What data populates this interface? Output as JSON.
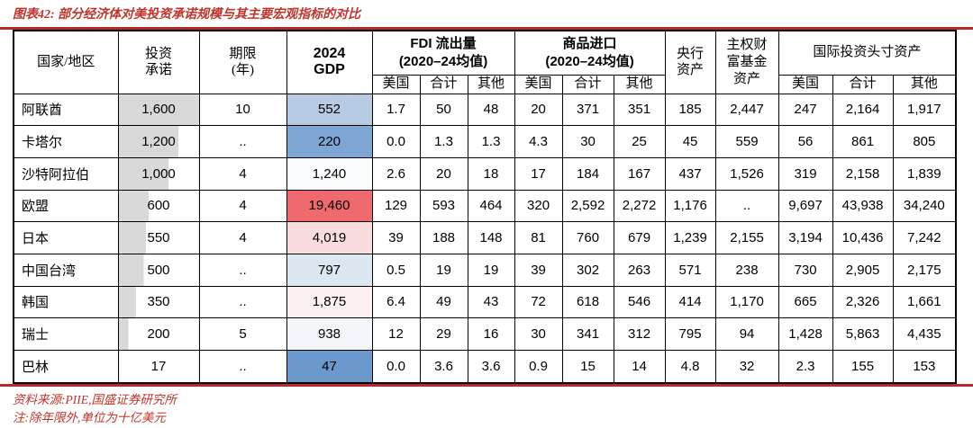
{
  "title": "图表42: 部分经济体对美投资承诺规模与其主要宏观指标的对比",
  "colors": {
    "accent_red": "#c0342c",
    "rule_red": "#b9292b",
    "bar_gray": "#d9d9d9",
    "border_black": "#000000",
    "gdp_scale_low_blue": "#6b99cd",
    "gdp_scale_mid_white": "#fbfcfe",
    "gdp_scale_high_red": "#ee6a6f"
  },
  "header": {
    "country": "国家/地区",
    "commitment": [
      "投资",
      "承诺"
    ],
    "term": [
      "期限",
      "(年)"
    ],
    "gdp": [
      "2024",
      "GDP"
    ],
    "fdi_group": [
      "FDI 流出量",
      "(2020–24均值)"
    ],
    "imports_group": [
      "商品进口",
      "(2020–24均值)"
    ],
    "cb": [
      "央行",
      "资产"
    ],
    "swf": [
      "主权财",
      "富基金",
      "资产"
    ],
    "iip_group": "国际投资头寸资产",
    "sub": [
      "美国",
      "合计",
      "其他"
    ]
  },
  "table": {
    "rows": [
      {
        "country": "阿联酋",
        "commitment": "1,600",
        "commitment_bar_pct": 100,
        "term": "10",
        "gdp": "552",
        "gdp_bg": "#b7cbe3",
        "fdi": [
          "1.7",
          "50",
          "48"
        ],
        "imports": [
          "20",
          "371",
          "351"
        ],
        "cb_assets": "185",
        "swf_assets": "2,447",
        "iip": [
          "247",
          "2,164",
          "1,917"
        ]
      },
      {
        "country": "卡塔尔",
        "commitment": "1,200",
        "commitment_bar_pct": 75,
        "term": "..",
        "gdp": "220",
        "gdp_bg": "#7ea6d5",
        "fdi": [
          "0.0",
          "1.3",
          "1.3"
        ],
        "imports": [
          "4.3",
          "30",
          "25"
        ],
        "cb_assets": "45",
        "swf_assets": "559",
        "iip": [
          "56",
          "861",
          "805"
        ]
      },
      {
        "country": "沙特阿拉伯",
        "commitment": "1,000",
        "commitment_bar_pct": 62.5,
        "term": "4",
        "gdp": "1,240",
        "gdp_bg": "#fbfcfe",
        "fdi": [
          "2.6",
          "20",
          "18"
        ],
        "imports": [
          "17",
          "184",
          "167"
        ],
        "cb_assets": "437",
        "swf_assets": "1,526",
        "iip": [
          "319",
          "2,158",
          "1,839"
        ]
      },
      {
        "country": "欧盟",
        "commitment": "600",
        "commitment_bar_pct": 37.5,
        "term": "4",
        "gdp": "19,460",
        "gdp_bg": "#ee6a6f",
        "fdi": [
          "129",
          "593",
          "464"
        ],
        "imports": [
          "320",
          "2,592",
          "2,272"
        ],
        "cb_assets": "1,176",
        "swf_assets": "..",
        "iip": [
          "9,697",
          "43,938",
          "34,240"
        ]
      },
      {
        "country": "日本",
        "commitment": "550",
        "commitment_bar_pct": 34.4,
        "term": "4",
        "gdp": "4,019",
        "gdp_bg": "#f9dcdd",
        "fdi": [
          "39",
          "188",
          "148"
        ],
        "imports": [
          "81",
          "760",
          "679"
        ],
        "cb_assets": "1,239",
        "swf_assets": "2,155",
        "iip": [
          "3,194",
          "10,436",
          "7,242"
        ]
      },
      {
        "country": "中国台湾",
        "commitment": "500",
        "commitment_bar_pct": 31.3,
        "term": "..",
        "gdp": "797",
        "gdp_bg": "#dde7f2",
        "fdi": [
          "0.5",
          "19",
          "19"
        ],
        "imports": [
          "39",
          "302",
          "263"
        ],
        "cb_assets": "571",
        "swf_assets": "238",
        "iip": [
          "730",
          "2,905",
          "2,175"
        ]
      },
      {
        "country": "韩国",
        "commitment": "350",
        "commitment_bar_pct": 21.9,
        "term": "..",
        "gdp": "1,875",
        "gdp_bg": "#fcf0f1",
        "fdi": [
          "6.4",
          "49",
          "43"
        ],
        "imports": [
          "72",
          "618",
          "546"
        ],
        "cb_assets": "414",
        "swf_assets": "1,170",
        "iip": [
          "665",
          "2,326",
          "1,661"
        ]
      },
      {
        "country": "瑞士",
        "commitment": "200",
        "commitment_bar_pct": 12.5,
        "term": "5",
        "gdp": "938",
        "gdp_bg": "#f3f7fb",
        "fdi": [
          "12",
          "29",
          "16"
        ],
        "imports": [
          "30",
          "341",
          "312"
        ],
        "cb_assets": "795",
        "swf_assets": "94",
        "iip": [
          "1,428",
          "5,863",
          "4,435"
        ]
      },
      {
        "country": "巴林",
        "commitment": "17",
        "commitment_bar_pct": 1.1,
        "term": "..",
        "gdp": "47",
        "gdp_bg": "#6b99cd",
        "fdi": [
          "0.0",
          "3.6",
          "3.6"
        ],
        "imports": [
          "0.9",
          "15",
          "14"
        ],
        "cb_assets": "4.8",
        "swf_assets": "32",
        "iip": [
          "2.3",
          "155",
          "153"
        ]
      }
    ]
  },
  "footer": {
    "source": "资料来源:PIIE,国盛证券研究所",
    "note": "注:除年限外,单位为十亿美元"
  }
}
